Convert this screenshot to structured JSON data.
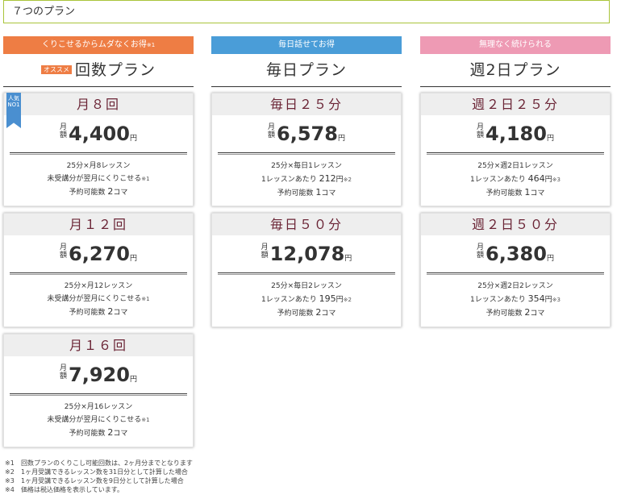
{
  "page_title": "７つのプラン",
  "colors": {
    "title_border": "#a9c43a",
    "col1_header": "#ee7d44",
    "col2_header": "#4a9dd8",
    "col3_header": "#ee9ab4",
    "ribbon": "#4a8fd0",
    "card_title": "#6b2536"
  },
  "columns": [
    {
      "header": "くりこせるからムダなくお得",
      "header_note": "※1",
      "badge": "オススメ",
      "name": "回数プラン",
      "ribbon": "人気NO1",
      "cards": [
        {
          "title": "月８回",
          "getsu": "月額",
          "amount": "4,400",
          "yen": "円",
          "line1": "25分×月8レッスン",
          "line2": "未受講分が翌月にくりこせる",
          "line2_note": "※1",
          "line3_label": "予約可能数 ",
          "line3_num": "2",
          "line3_unit": "コマ"
        },
        {
          "title": "月１２回",
          "getsu": "月額",
          "amount": "6,270",
          "yen": "円",
          "line1": "25分×月12レッスン",
          "line2": "未受講分が翌月にくりこせる",
          "line2_note": "※1",
          "line3_label": "予約可能数 ",
          "line3_num": "2",
          "line3_unit": "コマ"
        },
        {
          "title": "月１６回",
          "getsu": "月額",
          "amount": "7,920",
          "yen": "円",
          "line1": "25分×月16レッスン",
          "line2": "未受講分が翌月にくりこせる",
          "line2_note": "※1",
          "line3_label": "予約可能数 ",
          "line3_num": "2",
          "line3_unit": "コマ"
        }
      ]
    },
    {
      "header": "毎日話せてお得",
      "name": "毎日プラン",
      "cards": [
        {
          "title": "毎日２５分",
          "getsu": "月額",
          "amount": "6,578",
          "yen": "円",
          "line1": "25分×毎日1レッスン",
          "line2_pre": "1レッスンあたり ",
          "line2_num": "212",
          "line2_unit": "円",
          "line2_note": "※2",
          "line3_label": "予約可能数 ",
          "line3_num": "1",
          "line3_unit": "コマ"
        },
        {
          "title": "毎日５０分",
          "getsu": "月額",
          "amount": "12,078",
          "yen": "円",
          "line1": "25分×毎日2レッスン",
          "line2_pre": "1レッスンあたり ",
          "line2_num": "195",
          "line2_unit": "円",
          "line2_note": "※2",
          "line3_label": "予約可能数 ",
          "line3_num": "2",
          "line3_unit": "コマ"
        }
      ]
    },
    {
      "header": "無理なく続けられる",
      "name": "週2日プラン",
      "cards": [
        {
          "title": "週２日２５分",
          "getsu": "月額",
          "amount": "4,180",
          "yen": "円",
          "line1": "25分×週2日1レッスン",
          "line2_pre": "1レッスンあたり ",
          "line2_num": "464",
          "line2_unit": "円",
          "line2_note": "※3",
          "line3_label": "予約可能数 ",
          "line3_num": "1",
          "line3_unit": "コマ"
        },
        {
          "title": "週２日５０分",
          "getsu": "月額",
          "amount": "6,380",
          "yen": "円",
          "line1": "25分×週2日2レッスン",
          "line2_pre": "1レッスンあたり ",
          "line2_num": "354",
          "line2_unit": "円",
          "line2_note": "※3",
          "line3_label": "予約可能数 ",
          "line3_num": "2",
          "line3_unit": "コマ"
        }
      ]
    }
  ],
  "footnotes": [
    {
      "mark": "※1",
      "text": "回数プランのくりこし可能回数は、2ヶ月分までとなります"
    },
    {
      "mark": "※2",
      "text": "1ヶ月受講できるレッスン数を31日分として計算した場合"
    },
    {
      "mark": "※3",
      "text": "1ヶ月受講できるレッスン数を9日分として計算した場合"
    },
    {
      "mark": "※4",
      "text": "価格は税込価格を表示しています。"
    }
  ]
}
